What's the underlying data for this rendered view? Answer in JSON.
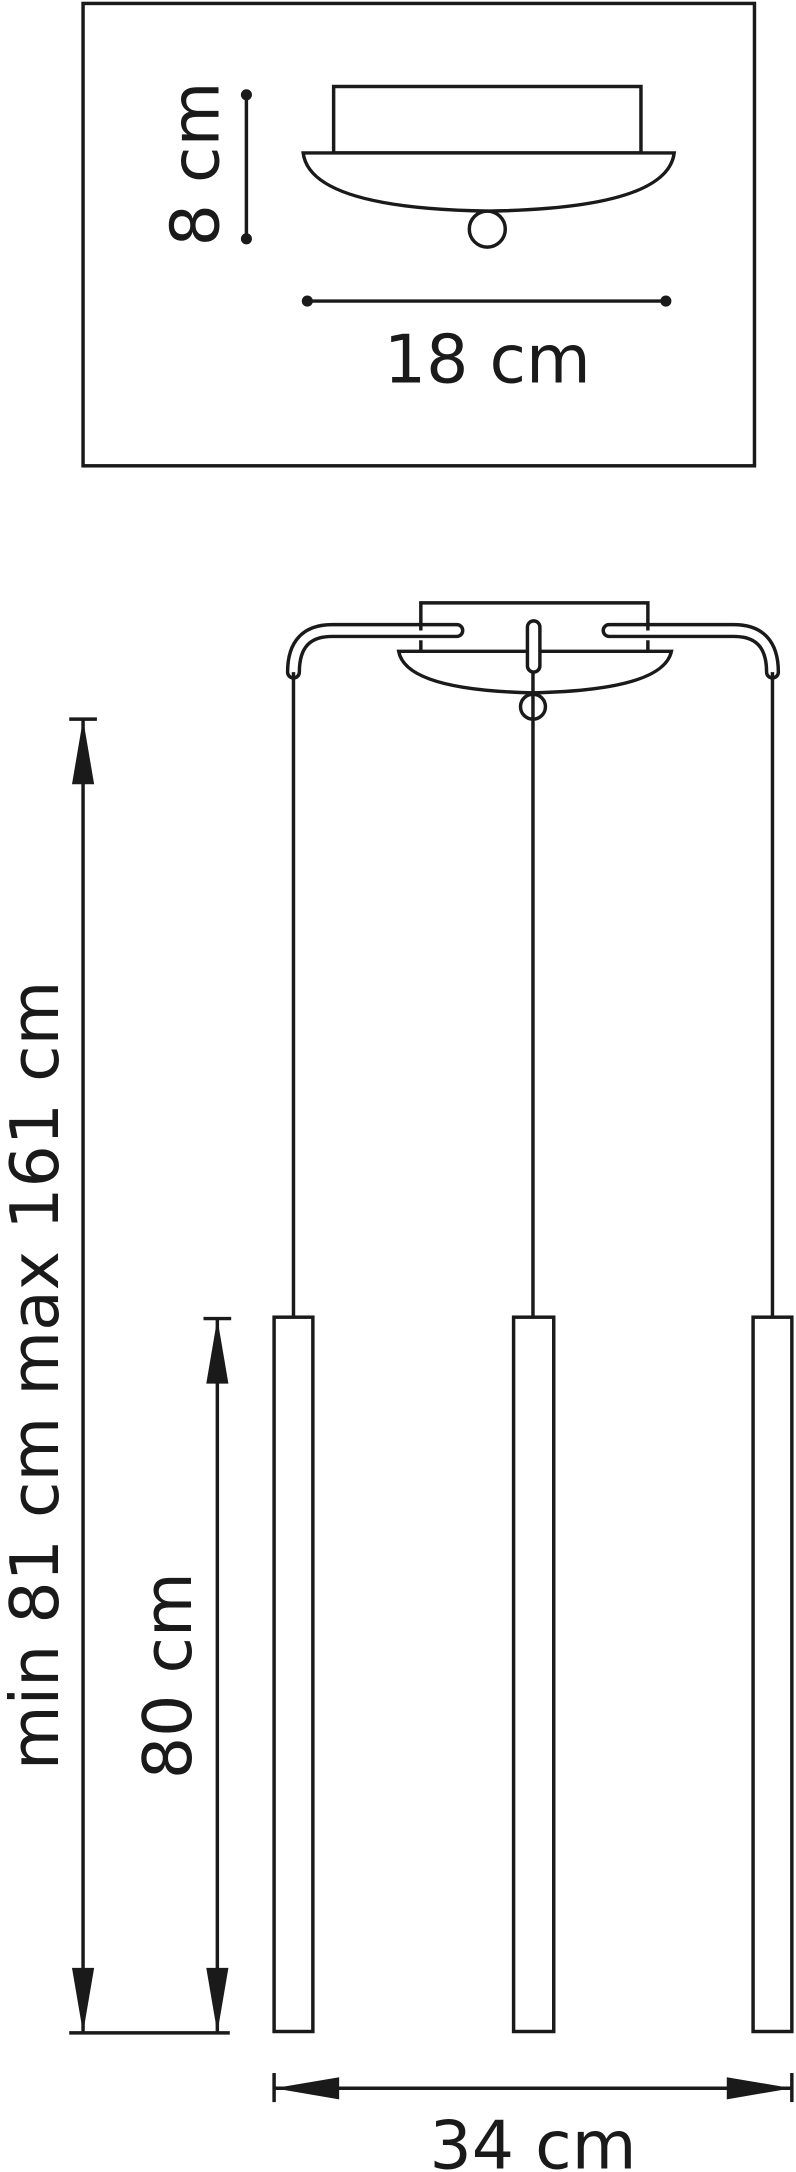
{
  "labels": {
    "canopy_height": "8 cm",
    "canopy_width": "18 cm",
    "total_height": "min 81 cm max 161 cm",
    "tube_length": "80 cm",
    "total_width": "34 cm"
  },
  "colors": {
    "line": "#1a1a1a",
    "background": "#ffffff"
  }
}
